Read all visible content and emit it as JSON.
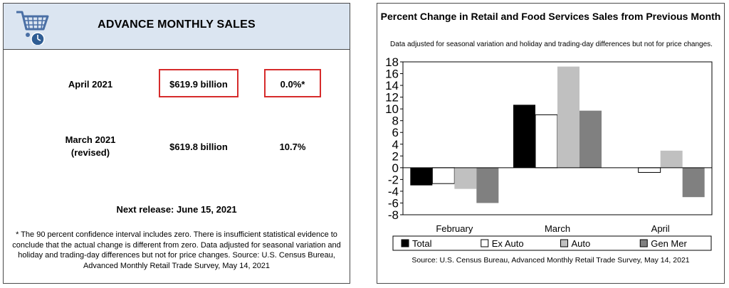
{
  "sales_panel": {
    "title": "ADVANCE MONTHLY SALES",
    "rows": [
      {
        "label": "April 2021",
        "amount": "$619.9 billion",
        "change": "0.0%*"
      },
      {
        "label_line1": "March 2021",
        "label_line2": "(revised)",
        "amount": "$619.8 billion",
        "change": "10.7%"
      }
    ],
    "next_release": "Next release: June 15, 2021",
    "footnote": "* The 90 percent confidence interval includes zero. There is insufficient statistical evidence to conclude that the actual change is different from zero. Data adjusted for seasonal variation and holiday and trading-day differences but not for price changes. Source: U.S. Census Bureau, Advanced Monthly Retail Trade Survey, May 14, 2021",
    "highlight_color": "#d62b2b",
    "header_bg": "#dbe5f1",
    "icon": "shopping-cart-clock-icon"
  },
  "chart_data": {
    "type": "bar",
    "title": "Percent Change in Retail and Food Services Sales from Previous Month",
    "subtitle": "Data adjusted for seasonal variation and holiday and trading-day differences but not for price changes.",
    "categories": [
      "February",
      "March",
      "April"
    ],
    "series": [
      {
        "name": "Total",
        "color": "#000000",
        "values": [
          -3.0,
          10.7,
          0.0
        ]
      },
      {
        "name": "Ex Auto",
        "color": "#ffffff",
        "values": [
          -2.7,
          9.0,
          -0.8
        ]
      },
      {
        "name": "Auto",
        "color": "#c0c0c0",
        "values": [
          -3.6,
          17.2,
          2.9
        ]
      },
      {
        "name": "Gen Mer",
        "color": "#808080",
        "values": [
          -6.0,
          9.7,
          -5.0
        ]
      }
    ],
    "ylim": [
      -8,
      18
    ],
    "yticks": [
      18,
      16,
      14,
      12,
      10,
      8,
      6,
      4,
      2,
      0,
      -2,
      -4,
      -6,
      -8
    ],
    "grid": false,
    "legend_position": "bottom",
    "source": "Source: U.S. Census Bureau, Advanced Monthly Retail Trade Survey, May 14, 2021"
  }
}
